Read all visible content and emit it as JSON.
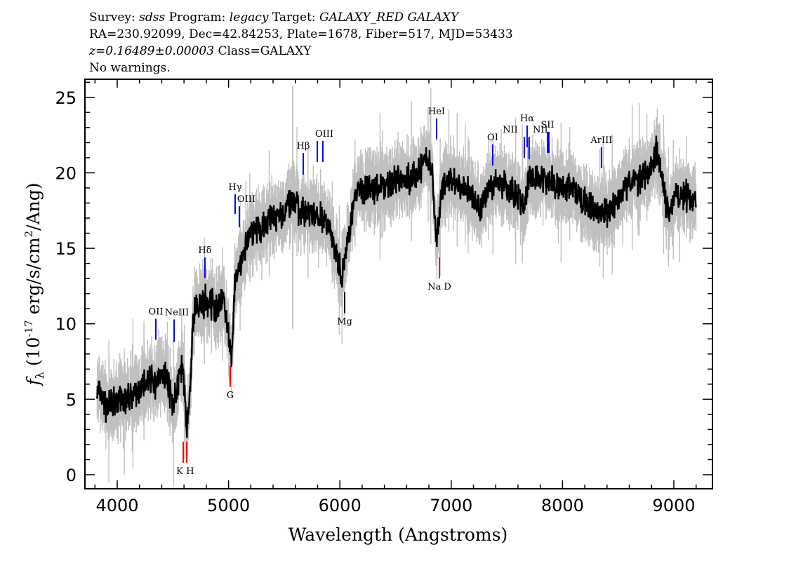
{
  "header": {
    "line1": [
      {
        "t": "Survey: ",
        "i": false
      },
      {
        "t": "sdss",
        "i": true
      },
      {
        "t": " Program: ",
        "i": false
      },
      {
        "t": "legacy",
        "i": true
      },
      {
        "t": " Target: ",
        "i": false
      },
      {
        "t": "GALAXY_RED GALAXY",
        "i": true
      }
    ],
    "line2": "RA=230.92099, Dec=42.84253, Plate=1678, Fiber=517, MJD=53433",
    "line3_italic": "z=0.16489±0.00003",
    "line3_rest": " Class=GALAXY",
    "line4": "No warnings."
  },
  "chart_data": {
    "type": "line",
    "xlabel": "Wavelength (Angstroms)",
    "ylabel": "f_λ (10^-17 erg/s/cm^2/Ang)",
    "xlim": [
      3710,
      9347
    ],
    "ylim": [
      -0.93,
      26.2
    ],
    "xticks": [
      4000,
      5000,
      6000,
      7000,
      8000,
      9000
    ],
    "yticks": [
      0,
      5,
      10,
      15,
      20,
      25
    ],
    "grid": false,
    "colors": {
      "flux": "#000000",
      "error_band": "#c0c0c0",
      "emission": "#0000ff",
      "absorption": "#ff0000",
      "other": "#000000"
    },
    "series": [
      {
        "x": [
          3820,
          3900,
          4000,
          4100,
          4200,
          4300,
          4350,
          4400,
          4450,
          4500,
          4550,
          4590,
          4620,
          4650,
          4680,
          4700,
          4800,
          4900,
          4950,
          5000,
          5030,
          5060,
          5100,
          5150,
          5200,
          5300,
          5400,
          5500,
          5580,
          5650,
          5700,
          5800,
          5850,
          5900,
          5950,
          6020,
          6080,
          6150,
          6200,
          6300,
          6400,
          6500,
          6600,
          6700,
          6780,
          6830,
          6870,
          6920,
          7000,
          7100,
          7200,
          7250,
          7350,
          7400,
          7500,
          7600,
          7650,
          7700,
          7800,
          7900,
          8000,
          8100,
          8200,
          8300,
          8400,
          8500,
          8600,
          8700,
          8800,
          8850,
          8900,
          8950,
          9000,
          9100,
          9200
        ],
        "y": [
          5.5,
          4.5,
          5,
          5,
          5.5,
          6.5,
          6,
          7,
          6.5,
          4.5,
          6,
          7.5,
          3,
          5,
          10,
          11,
          11.5,
          11,
          12,
          9,
          7.5,
          13,
          14,
          15,
          16,
          16.5,
          17,
          17.5,
          18,
          17.5,
          17.5,
          17,
          17,
          16.5,
          15,
          13,
          16,
          19,
          19,
          19,
          19.2,
          19.5,
          19.5,
          20,
          21,
          20,
          15.5,
          19,
          19.5,
          19,
          18.5,
          17.5,
          19,
          19.5,
          19,
          18.5,
          17.5,
          19.5,
          19.5,
          19.5,
          19,
          19,
          18,
          17.5,
          17.5,
          18.5,
          19.5,
          19.5,
          20.5,
          21.5,
          19.5,
          17,
          18.5,
          18.5,
          18
        ]
      }
    ],
    "lines": [
      {
        "label": "OII",
        "wavelength": 4347,
        "kind": "emission",
        "range": [
          8.94,
          10.34
        ]
      },
      {
        "label": "NeIII",
        "wavelength": 4511,
        "kind": "emission",
        "range": [
          8.8,
          10.29
        ]
      },
      {
        "label": "K",
        "wavelength": 4593,
        "kind": "absorption",
        "range": [
          0.79,
          2.19
        ]
      },
      {
        "label": "H",
        "wavelength": 4624,
        "kind": "absorption",
        "range": [
          0.79,
          2.19
        ]
      },
      {
        "label": "Hδ",
        "wavelength": 4788,
        "kind": "emission",
        "range": [
          13.04,
          14.39
        ]
      },
      {
        "label": "G",
        "wavelength": 5015,
        "kind": "absorption",
        "range": [
          5.82,
          7.22
        ]
      },
      {
        "label": "Hγ",
        "wavelength": 5059,
        "kind": "emission",
        "range": [
          17.27,
          18.58
        ]
      },
      {
        "label": "OIII",
        "wavelength": 5097,
        "kind": "emission",
        "range": [
          16.39,
          17.78
        ]
      },
      {
        "label": "Hβ",
        "wavelength": 5671,
        "kind": "emission",
        "range": [
          19.88,
          21.32
        ]
      },
      {
        "label": "OIII",
        "wavelength": 5797,
        "kind": "emission",
        "range": [
          20.72,
          22.11
        ]
      },
      {
        "label": "",
        "wavelength": 5847,
        "kind": "emission",
        "range": [
          20.72,
          22.11
        ]
      },
      {
        "label": "Mg",
        "wavelength": 6043,
        "kind": "other",
        "range": [
          10.71,
          12.1
        ]
      },
      {
        "label": "HeI",
        "wavelength": 6869,
        "kind": "emission",
        "range": [
          22.21,
          23.6
        ]
      },
      {
        "label": "Na D",
        "wavelength": 6894,
        "kind": "absorption",
        "range": [
          13.0,
          14.39
        ]
      },
      {
        "label": "OI",
        "wavelength": 7373,
        "kind": "emission",
        "range": [
          20.48,
          21.88
        ]
      },
      {
        "label": "NII",
        "wavelength": 7657,
        "kind": "emission",
        "range": [
          21.0,
          22.39
        ]
      },
      {
        "label": "Hα",
        "wavelength": 7682,
        "kind": "emission",
        "range": [
          21.69,
          23.14
        ]
      },
      {
        "label": "NII",
        "wavelength": 7700,
        "kind": "emission",
        "range": [
          20.9,
          22.39
        ]
      },
      {
        "label": "SII",
        "wavelength": 7865,
        "kind": "emission",
        "range": [
          21.32,
          22.72
        ]
      },
      {
        "label": "",
        "wavelength": 7877,
        "kind": "emission",
        "range": [
          21.32,
          22.72
        ]
      },
      {
        "label": "ArIII",
        "wavelength": 8350,
        "kind": "emission",
        "range": [
          20.3,
          21.69
        ]
      }
    ]
  }
}
